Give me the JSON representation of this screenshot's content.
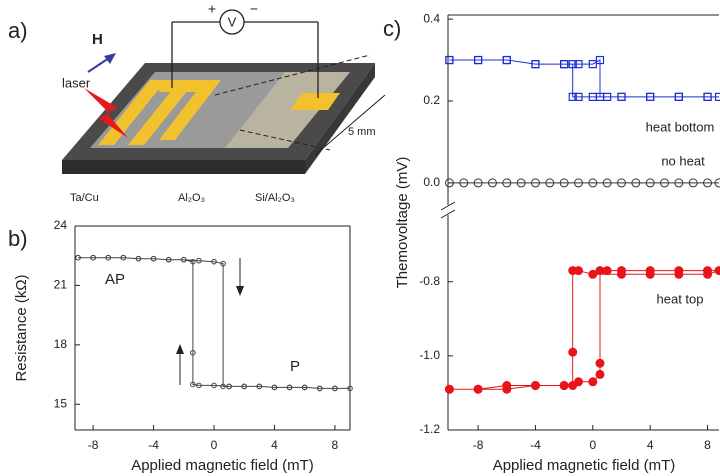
{
  "panel_labels": [
    "a)",
    "b)",
    "c)"
  ],
  "schematic": {
    "field_label": "H",
    "voltmeter": "V",
    "plus": "+",
    "minus": "−",
    "laser": "laser",
    "scale": "5 mm",
    "layers": [
      "Ta/Cu",
      "Al₂O₃",
      "Si/Al₂O₃"
    ]
  },
  "chart_data": [
    {
      "type": "line",
      "xlabel": "Applied magnetic field (mT)",
      "ylabel": "Resistance (kΩ)",
      "xlim": [
        -9.2,
        9.0
      ],
      "ylim": [
        13.7,
        24
      ],
      "xticks": [
        -8,
        -4,
        0,
        4,
        8
      ],
      "yticks": [
        15,
        18,
        21,
        24
      ],
      "annotations": [
        "AP",
        "P"
      ],
      "series": [
        {
          "color": "#444444",
          "marker": "circle",
          "x": [
            -9,
            -8,
            -7,
            -6,
            -5,
            -4,
            -3,
            -2,
            -1,
            0,
            0.6,
            0.6,
            1,
            2,
            3,
            4,
            5,
            6,
            7,
            8,
            9,
            8,
            7,
            6,
            5,
            4,
            3,
            2,
            1,
            0,
            -1,
            -1.4,
            -1.4,
            -1.4,
            -2,
            -3,
            -4,
            -5,
            -6,
            -7,
            -8,
            -9
          ],
          "values": [
            22.4,
            22.4,
            22.4,
            22.4,
            22.35,
            22.35,
            22.3,
            22.3,
            22.25,
            22.2,
            22.1,
            15.9,
            15.9,
            15.9,
            15.9,
            15.85,
            15.85,
            15.85,
            15.8,
            15.8,
            15.8,
            15.8,
            15.8,
            15.85,
            15.85,
            15.85,
            15.9,
            15.9,
            15.9,
            15.95,
            15.95,
            16.0,
            17.6,
            22.2,
            22.3,
            22.3,
            22.35,
            22.35,
            22.4,
            22.4,
            22.4,
            22.4
          ]
        }
      ]
    },
    {
      "type": "line",
      "xlabel": "Applied magnetic field (mT)",
      "ylabel": "Themovoltage (mV)",
      "xlim": [
        -10.1,
        8.8
      ],
      "ylim": [
        [
          -1.2,
          -0.62
        ],
        [
          -0.054,
          0.41
        ]
      ],
      "xticks": [
        -8,
        -4,
        0,
        4,
        8
      ],
      "yticks": [
        -1.2,
        {
          "value": -1.0,
          "label": "-1.0"
        },
        -0.8,
        {
          "value": 0,
          "label": "0.0"
        },
        0.2,
        0.4
      ],
      "series": [
        {
          "name": "heat bottom",
          "color": "#1f2fd0",
          "marker": "square",
          "x": [
            -10,
            -8,
            -6,
            -4,
            -2,
            -1,
            0,
            0.5,
            0.5,
            1,
            2,
            4,
            6,
            8,
            8.8,
            8,
            6,
            4,
            2,
            0,
            -1,
            -1.4,
            -1.4,
            -2,
            -4,
            -6,
            -8,
            -10
          ],
          "values": [
            0.3,
            0.3,
            0.3,
            0.29,
            0.29,
            0.29,
            0.29,
            0.3,
            0.21,
            0.21,
            0.21,
            0.21,
            0.21,
            0.21,
            0.21,
            0.21,
            0.21,
            0.21,
            0.21,
            0.21,
            0.21,
            0.21,
            0.29,
            0.29,
            0.29,
            0.3,
            0.3,
            0.3
          ]
        },
        {
          "name": "no heat",
          "color": "#333333",
          "marker": "circle",
          "x": [
            -10,
            -9,
            -8,
            -7,
            -6,
            -5,
            -4,
            -3,
            -2,
            -1,
            0,
            1,
            2,
            3,
            4,
            5,
            6,
            7,
            8,
            8.8
          ],
          "values": [
            0,
            0,
            0,
            0,
            0,
            0,
            0,
            0,
            0,
            0,
            0,
            0,
            0,
            0,
            0,
            0,
            0,
            0,
            0,
            0
          ]
        },
        {
          "name": "heat top",
          "color": "#e8141a",
          "marker": "filled-circle",
          "x": [
            -10,
            -8,
            -6,
            -4,
            -2,
            -1,
            0,
            0.5,
            0.5,
            0.5,
            1,
            2,
            4,
            6,
            8,
            8.8,
            8,
            6,
            4,
            2,
            0,
            -1,
            -1.4,
            -1.4,
            -1.4,
            -2,
            -4,
            -6,
            -8,
            -10
          ],
          "values": [
            -1.09,
            -1.09,
            -1.08,
            -1.08,
            -1.08,
            -1.07,
            -1.07,
            -1.05,
            -1.02,
            -0.77,
            -0.77,
            -0.77,
            -0.77,
            -0.77,
            -0.77,
            -0.77,
            -0.78,
            -0.78,
            -0.78,
            -0.78,
            -0.78,
            -0.77,
            -0.77,
            -0.99,
            -1.08,
            -1.08,
            -1.08,
            -1.09,
            -1.09,
            -1.09
          ]
        }
      ]
    }
  ]
}
